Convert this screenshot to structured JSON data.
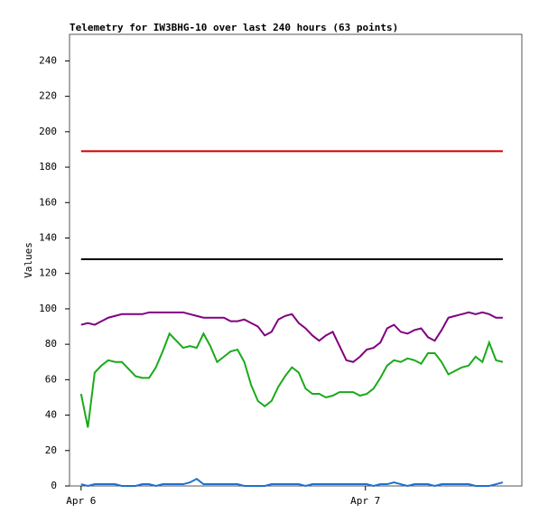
{
  "chart_data": {
    "type": "line",
    "title": "Telemetry for IW3BHG-10 over last 240 hours (63 points)",
    "ylabel": "Values",
    "ylim": [
      0,
      255
    ],
    "yticks": [
      0,
      20,
      40,
      60,
      80,
      100,
      120,
      140,
      160,
      180,
      200,
      220,
      240
    ],
    "xlim": [
      -1.7,
      64.8
    ],
    "xticks": [
      {
        "value": 0,
        "label": "Apr 6"
      },
      {
        "value": 41.8,
        "label": "Apr 7"
      }
    ],
    "grid": false,
    "series": [
      {
        "color": "#cc0000",
        "values": [
          189,
          189,
          189,
          189,
          189,
          189,
          189,
          189,
          189,
          189,
          189,
          189,
          189,
          189,
          189,
          189,
          189,
          189,
          189,
          189,
          189,
          189,
          189,
          189,
          189,
          189,
          189,
          189,
          189,
          189,
          189,
          189,
          189,
          189,
          189,
          189,
          189,
          189,
          189,
          189,
          189,
          189,
          189,
          189,
          189,
          189,
          189,
          189,
          189,
          189,
          189,
          189,
          189,
          189,
          189,
          189,
          189,
          189,
          189,
          189,
          189,
          189,
          189
        ]
      },
      {
        "color": "#000000",
        "values": [
          128,
          128,
          128,
          128,
          128,
          128,
          128,
          128,
          128,
          128,
          128,
          128,
          128,
          128,
          128,
          128,
          128,
          128,
          128,
          128,
          128,
          128,
          128,
          128,
          128,
          128,
          128,
          128,
          128,
          128,
          128,
          128,
          128,
          128,
          128,
          128,
          128,
          128,
          128,
          128,
          128,
          128,
          128,
          128,
          128,
          128,
          128,
          128,
          128,
          128,
          128,
          128,
          128,
          128,
          128,
          128,
          128,
          128,
          128,
          128,
          128,
          128,
          128
        ]
      },
      {
        "color": "#800080",
        "values": [
          91,
          92,
          91,
          93,
          95,
          96,
          97,
          97,
          97,
          97,
          98,
          98,
          98,
          98,
          98,
          98,
          97,
          96,
          95,
          95,
          95,
          95,
          93,
          93,
          94,
          92,
          90,
          85,
          87,
          94,
          96,
          97,
          92,
          89,
          85,
          82,
          85,
          87,
          79,
          71,
          70,
          73,
          77,
          78,
          81,
          89,
          91,
          87,
          86,
          88,
          89,
          84,
          82,
          88,
          95,
          96,
          97,
          98,
          97,
          98,
          97,
          95,
          95
        ]
      },
      {
        "color": "#1aaa1a",
        "values": [
          52,
          33,
          64,
          68,
          71,
          70,
          70,
          66,
          62,
          61,
          61,
          67,
          76,
          86,
          82,
          78,
          79,
          78,
          86,
          79,
          70,
          73,
          76,
          77,
          70,
          57,
          48,
          45,
          48,
          56,
          62,
          67,
          64,
          55,
          52,
          52,
          50,
          51,
          53,
          53,
          53,
          51,
          52,
          55,
          61,
          68,
          71,
          70,
          72,
          71,
          69,
          75,
          75,
          70,
          63,
          65,
          67,
          68,
          73,
          70,
          81,
          71,
          70
        ]
      },
      {
        "color": "#1f6fcf",
        "values": [
          1,
          0,
          1,
          1,
          1,
          1,
          0,
          0,
          0,
          1,
          1,
          0,
          1,
          1,
          1,
          1,
          2,
          4,
          1,
          1,
          1,
          1,
          1,
          1,
          0,
          0,
          0,
          0,
          1,
          1,
          1,
          1,
          1,
          0,
          1,
          1,
          1,
          1,
          1,
          1,
          1,
          1,
          1,
          0,
          1,
          1,
          2,
          1,
          0,
          1,
          1,
          1,
          0,
          1,
          1,
          1,
          1,
          1,
          0,
          0,
          0,
          1,
          2
        ]
      }
    ]
  }
}
